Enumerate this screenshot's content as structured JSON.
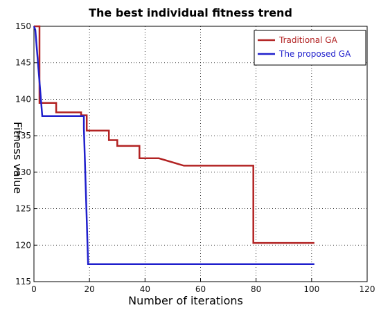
{
  "chart_data": {
    "type": "line",
    "title": "The best individual fitness trend",
    "xlabel": "Number of iterations",
    "ylabel": "Fitness value",
    "xlim": [
      0,
      120
    ],
    "ylim": [
      115,
      150
    ],
    "xticks": [
      "0",
      "20",
      "40",
      "60",
      "80",
      "100",
      "120"
    ],
    "yticks": [
      "115",
      "120",
      "125",
      "130",
      "135",
      "140",
      "145",
      "150"
    ],
    "grid": true,
    "legend_position": "top-right",
    "series": [
      {
        "name": "Traditional GA",
        "color": "#b22222",
        "x": [
          0,
          1,
          2,
          2,
          8,
          8,
          17,
          17,
          19,
          19,
          27,
          27,
          30,
          30,
          33,
          33,
          38,
          38,
          45,
          45,
          54,
          54,
          79,
          79,
          101
        ],
        "y": [
          150,
          150,
          150,
          139.5,
          139.5,
          138.2,
          138.2,
          137.8,
          137.8,
          135.7,
          135.7,
          134.4,
          134.4,
          133.6,
          133.6,
          133.6,
          133.6,
          131.9,
          131.9,
          131.9,
          130.9,
          130.9,
          130.9,
          120.3,
          120.3
        ]
      },
      {
        "name": "The proposed  GA",
        "color": "#1f1fcc",
        "x": [
          0,
          0.5,
          3,
          3,
          18,
          18,
          19.5,
          19.5,
          101
        ],
        "y": [
          150,
          149.5,
          137.7,
          137.7,
          137.7,
          136,
          117.4,
          117.4,
          117.4
        ]
      }
    ]
  }
}
